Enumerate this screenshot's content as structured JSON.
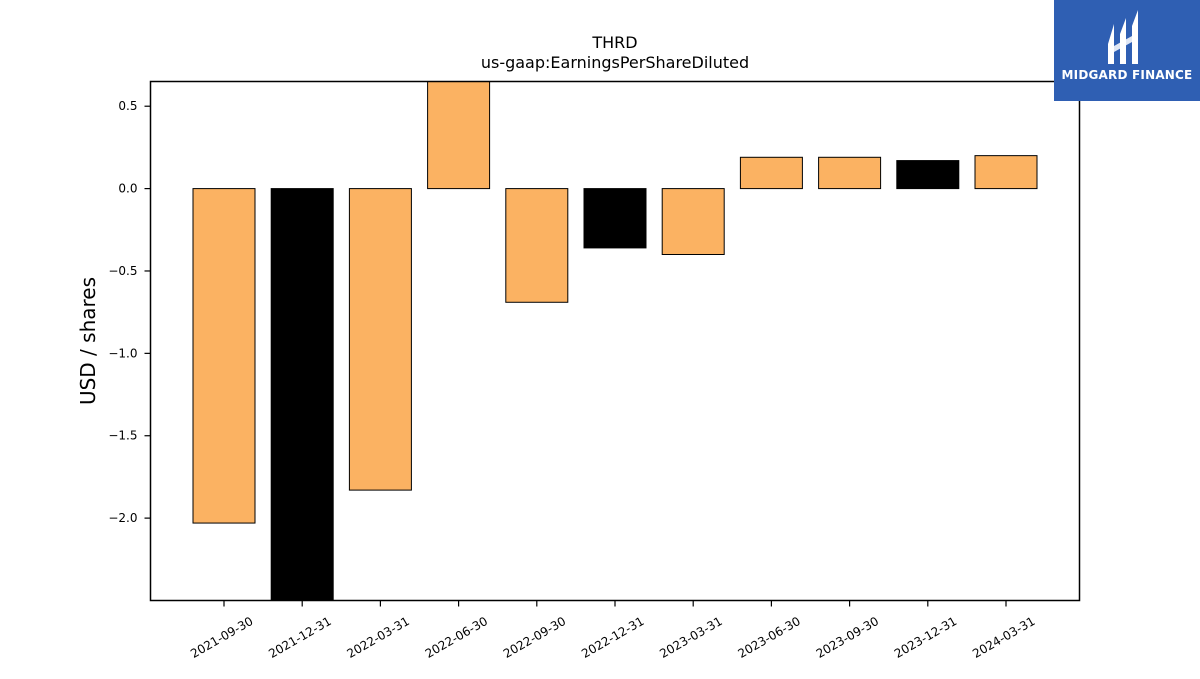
{
  "chart_data": {
    "type": "bar",
    "title": "THRD",
    "subtitle": "us-gaap:EarningsPerShareDiluted",
    "xlabel": "",
    "ylabel": "USD / shares",
    "categories": [
      "2021-09-30",
      "2021-12-31",
      "2022-03-31",
      "2022-06-30",
      "2022-09-30",
      "2022-12-31",
      "2023-03-31",
      "2023-06-30",
      "2023-09-30",
      "2023-12-31",
      "2024-03-31"
    ],
    "values": [
      -2.03,
      -2.52,
      -1.83,
      0.66,
      -0.69,
      -0.36,
      -0.4,
      0.19,
      0.19,
      0.17,
      0.2
    ],
    "bar_colors": [
      "#fbb262",
      "#000000",
      "#fbb262",
      "#fbb262",
      "#fbb262",
      "#000000",
      "#fbb262",
      "#fbb262",
      "#fbb262",
      "#000000",
      "#fbb262"
    ],
    "ylim": [
      -2.5,
      0.65
    ],
    "yticks": [
      0.5,
      0.0,
      -0.5,
      -1.0,
      -1.5,
      -2.0
    ],
    "ytick_labels": [
      "0.5",
      "0.0",
      "−0.5",
      "−1.0",
      "−1.5",
      "−2.0"
    ],
    "grid": false,
    "legend": "none"
  },
  "logo": {
    "text": "MIDGARD FINANCE",
    "background": "#2f5fb3"
  }
}
